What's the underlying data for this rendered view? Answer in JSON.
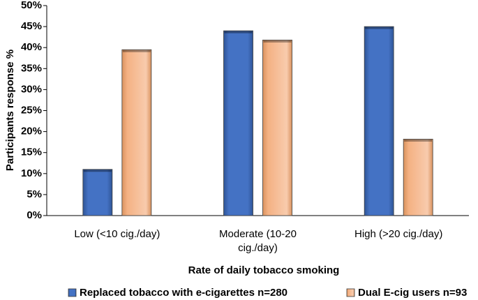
{
  "chart_data": {
    "type": "bar",
    "categories": [
      [
        "Low (<10 cig./day)"
      ],
      [
        "Moderate (10-20",
        "cig./day)"
      ],
      [
        "High (>20 cig./day)"
      ]
    ],
    "series": [
      {
        "name": "Replaced tobacco with e-cigarettes n=280",
        "values": [
          11,
          44,
          45
        ],
        "color": "#4472C4"
      },
      {
        "name": "Dual E-cig users n=93",
        "values": [
          39.5,
          41.8,
          18.2
        ],
        "color": "#F4B183"
      }
    ],
    "xlabel": "Rate of daily tobacco smoking",
    "ylabel": "Participants response %",
    "ylim": [
      0,
      50
    ],
    "yticks": [
      "0%",
      "5%",
      "10%",
      "15%",
      "20%",
      "25%",
      "30%",
      "35%",
      "40%",
      "45%",
      "50%"
    ],
    "grid": false,
    "legend_position": "bottom"
  }
}
